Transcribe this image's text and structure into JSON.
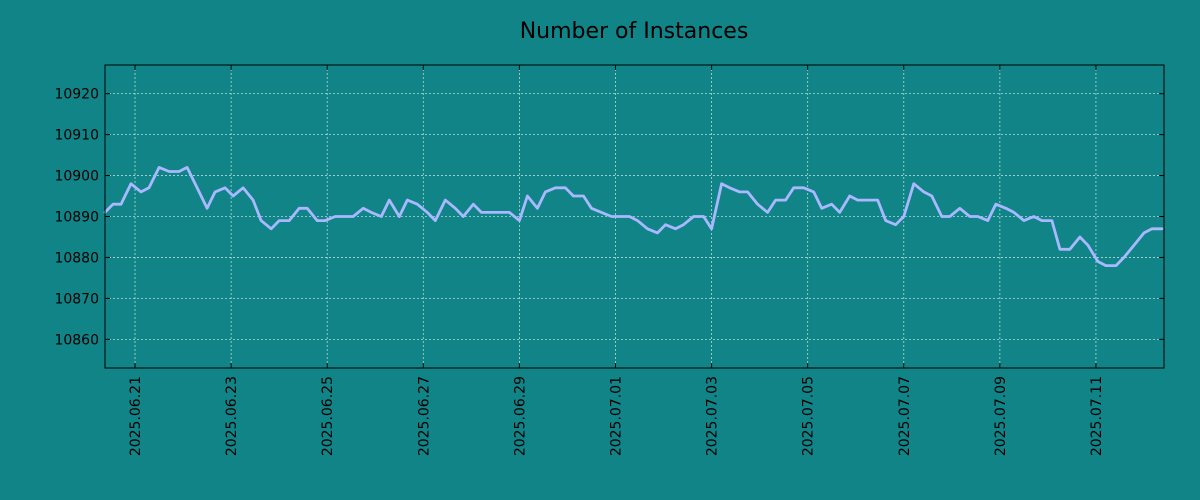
{
  "chart_data": {
    "type": "line",
    "title": "Number of Instances",
    "xlabel": "",
    "ylabel": "",
    "x_range": [
      "2025-06-20T09:00",
      "2025-07-12T10:00"
    ],
    "ylim": [
      10853,
      10927
    ],
    "yticks": [
      10860,
      10870,
      10880,
      10890,
      10900,
      10910,
      10920
    ],
    "xticks": [
      "2025.06.21",
      "2025.06.23",
      "2025.06.25",
      "2025.06.27",
      "2025.06.29",
      "2025.07.01",
      "2025.07.03",
      "2025.07.05",
      "2025.07.07",
      "2025.07.09",
      "2025.07.11"
    ],
    "grid": true,
    "legend": "none",
    "colors": {
      "background": "#108487",
      "line": "#a9b8ff"
    },
    "series": [
      {
        "x": [
          "2025-06-20T09:00",
          "2025-06-20T13:00",
          "2025-06-20T17:00",
          "2025-06-20T22:00",
          "2025-06-21T03:00",
          "2025-06-21T07:00",
          "2025-06-21T12:00",
          "2025-06-21T17:00",
          "2025-06-21T22:00",
          "2025-06-22T02:00",
          "2025-06-22T07:00",
          "2025-06-22T12:00",
          "2025-06-22T16:00",
          "2025-06-22T21:00",
          "2025-06-23T01:00",
          "2025-06-23T06:00",
          "2025-06-23T11:00",
          "2025-06-23T15:00",
          "2025-06-23T20:00",
          "2025-06-24T00:00",
          "2025-06-24T05:00",
          "2025-06-24T10:00",
          "2025-06-24T14:00",
          "2025-06-24T19:00",
          "2025-06-24T23:00",
          "2025-06-25T04:00",
          "2025-06-25T08:00",
          "2025-06-25T13:00",
          "2025-06-25T18:00",
          "2025-06-25T22:00",
          "2025-06-26T03:00",
          "2025-06-26T07:00",
          "2025-06-26T12:00",
          "2025-06-26T16:00",
          "2025-06-26T21:00",
          "2025-06-27T02:00",
          "2025-06-27T06:00",
          "2025-06-27T11:00",
          "2025-06-27T16:00",
          "2025-06-27T20:00",
          "2025-06-28T01:00",
          "2025-06-28T05:00",
          "2025-06-28T10:00",
          "2025-06-28T14:00",
          "2025-06-28T19:00",
          "2025-06-29T00:00",
          "2025-06-29T04:00",
          "2025-06-29T09:00",
          "2025-06-29T13:00",
          "2025-06-29T18:00",
          "2025-06-29T23:00",
          "2025-06-30T03:00",
          "2025-06-30T08:00",
          "2025-06-30T12:00",
          "2025-06-30T17:00",
          "2025-06-30T22:00",
          "2025-07-01T02:00",
          "2025-07-01T07:00",
          "2025-07-01T11:00",
          "2025-07-01T16:00",
          "2025-07-01T21:00",
          "2025-07-02T01:00",
          "2025-07-02T06:00",
          "2025-07-02T10:00",
          "2025-07-02T15:00",
          "2025-07-02T20:00",
          "2025-07-03T00:00",
          "2025-07-03T05:00",
          "2025-07-03T09:00",
          "2025-07-03T14:00",
          "2025-07-03T18:00",
          "2025-07-03T23:00",
          "2025-07-04T04:00",
          "2025-07-04T08:00",
          "2025-07-04T13:00",
          "2025-07-04T17:00",
          "2025-07-04T22:00",
          "2025-07-05T03:00",
          "2025-07-05T07:00",
          "2025-07-05T12:00",
          "2025-07-05T16:00",
          "2025-07-05T21:00",
          "2025-07-06T01:00",
          "2025-07-06T06:00",
          "2025-07-06T11:00",
          "2025-07-06T15:00",
          "2025-07-06T20:00",
          "2025-07-07T00:00",
          "2025-07-07T05:00",
          "2025-07-07T10:00",
          "2025-07-07T14:00",
          "2025-07-07T19:00",
          "2025-07-07T23:00",
          "2025-07-08T04:00",
          "2025-07-08T09:00",
          "2025-07-08T13:00",
          "2025-07-08T18:00",
          "2025-07-08T22:00",
          "2025-07-09T03:00",
          "2025-07-09T07:00",
          "2025-07-09T12:00",
          "2025-07-09T17:00",
          "2025-07-09T21:00",
          "2025-07-10T02:00",
          "2025-07-10T06:00",
          "2025-07-10T11:00",
          "2025-07-10T16:00",
          "2025-07-10T20:00",
          "2025-07-11T01:00",
          "2025-07-11T05:00",
          "2025-07-11T10:00",
          "2025-07-11T14:00",
          "2025-07-11T19:00",
          "2025-07-12T00:00",
          "2025-07-12T04:00",
          "2025-07-12T09:00"
        ],
        "values": [
          10891,
          10893,
          10893,
          10898,
          10896,
          10897,
          10902,
          10901,
          10901,
          10902,
          10897,
          10892,
          10896,
          10897,
          10895,
          10897,
          10894,
          10889,
          10887,
          10889,
          10889,
          10892,
          10892,
          10889,
          10889,
          10890,
          10890,
          10890,
          10892,
          10891,
          10890,
          10894,
          10890,
          10894,
          10893,
          10891,
          10889,
          10894,
          10892,
          10890,
          10893,
          10891,
          10891,
          10891,
          10891,
          10889,
          10895,
          10892,
          10896,
          10897,
          10897,
          10895,
          10895,
          10892,
          10891,
          10890,
          10890,
          10890,
          10889,
          10887,
          10886,
          10888,
          10887,
          10888,
          10890,
          10890,
          10887,
          10898,
          10897,
          10896,
          10896,
          10893,
          10891,
          10894,
          10894,
          10897,
          10897,
          10896,
          10892,
          10893,
          10891,
          10895,
          10894,
          10894,
          10894,
          10889,
          10888,
          10890,
          10898,
          10896,
          10895,
          10890,
          10890,
          10892,
          10890,
          10890,
          10889,
          10893,
          10892,
          10891,
          10889,
          10890,
          10889,
          10889,
          10882,
          10882,
          10885,
          10883,
          10879,
          10878,
          10878,
          10880,
          10883,
          10886,
          10887,
          10887
        ]
      }
    ]
  }
}
